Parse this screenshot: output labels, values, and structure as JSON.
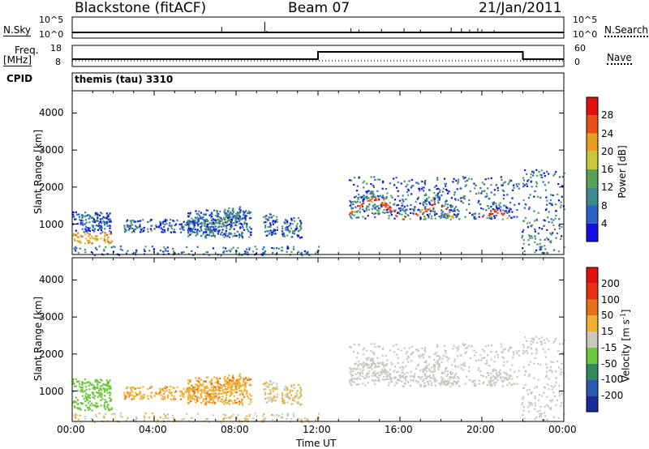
{
  "header": {
    "title": "Blackstone (fitACF)",
    "beam": "Beam 07",
    "date": "21/Jan/2011"
  },
  "top_panels": {
    "nsky_label": "N.Sky",
    "nsky_ticks": [
      "10^5",
      "10^0"
    ],
    "nsearch_label": "N.Search",
    "nsearch_ticks": [
      "10^5",
      "10^0"
    ],
    "freq_label": "Freq.",
    "freq_unit": "[MHz]",
    "freq_ticks": [
      "18",
      "8"
    ],
    "nave_label": "Nave",
    "nave_ticks": [
      "60",
      "0"
    ],
    "cpid_label": "CPID",
    "cpid_text": "themis (tau) 3310"
  },
  "chart_data": [
    {
      "type": "heatmap",
      "name": "power",
      "ylabel": "Slant Range [km]",
      "ylim": [
        180,
        4600
      ],
      "yticks": [
        "1000",
        "2000",
        "3000",
        "4000"
      ],
      "xlabel": "Time UT",
      "xticks": [
        "00:00",
        "04:00",
        "08:00",
        "12:00",
        "16:00",
        "20:00",
        "00:00"
      ],
      "colorbar": {
        "label": "Power [dB]",
        "ticks": [
          "4",
          "8",
          "12",
          "16",
          "20",
          "24",
          "28"
        ],
        "colors": [
          "#1010e0",
          "#2a62c8",
          "#3b8a8a",
          "#5aa05a",
          "#c8c83a",
          "#e8a020",
          "#e85018",
          "#e01010"
        ]
      }
    },
    {
      "type": "heatmap",
      "name": "velocity",
      "ylabel": "Slant Range [km]",
      "ylim": [
        180,
        4600
      ],
      "yticks": [
        "1000",
        "2000",
        "3000",
        "4000"
      ],
      "xlabel": "Time UT",
      "xticks": [
        "00:00",
        "04:00",
        "08:00",
        "12:00",
        "16:00",
        "20:00",
        "00:00"
      ],
      "colorbar": {
        "label": "Velocity [m s",
        "label_sup": "-1",
        "label_end": "]",
        "ticks": [
          "200",
          "100",
          "50",
          "15",
          "-15",
          "-50",
          "-100",
          "-200"
        ],
        "colors": [
          "#1a2a9a",
          "#2a5ab0",
          "#2e8a5a",
          "#6ac83a",
          "#c8c8c0",
          "#f0b030",
          "#e87018",
          "#e83010",
          "#e01010"
        ]
      }
    }
  ],
  "xaxis": {
    "title": "Time UT",
    "ticks": [
      "00:00",
      "04:00",
      "08:00",
      "12:00",
      "16:00",
      "20:00",
      "00:00"
    ]
  }
}
